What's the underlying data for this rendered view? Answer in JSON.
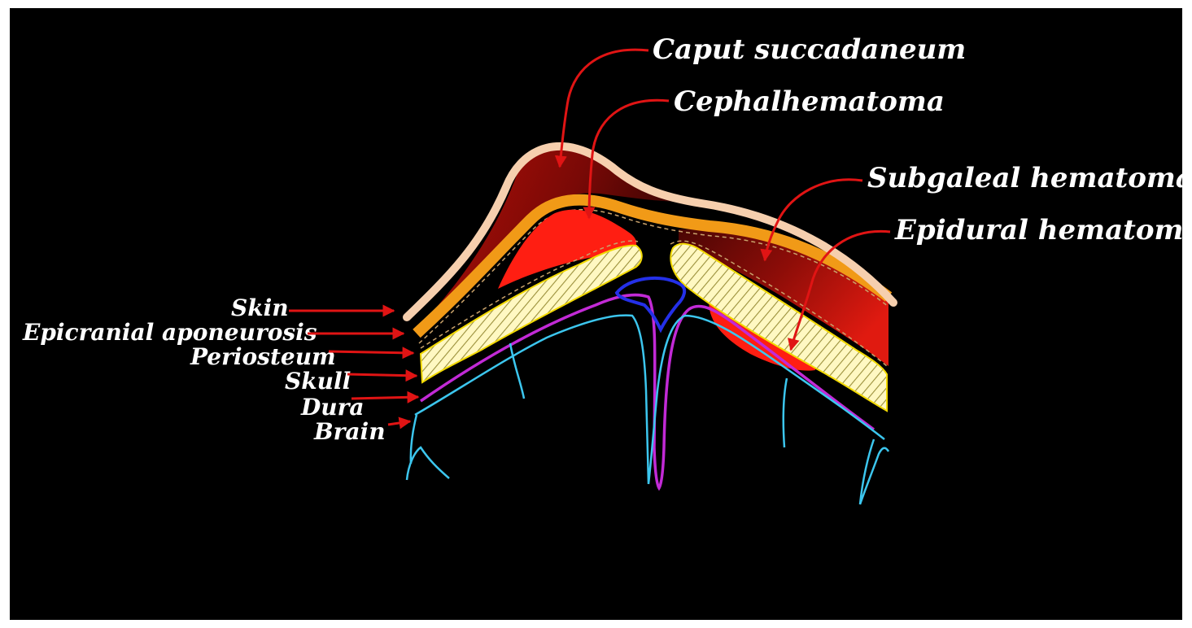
{
  "labels": {
    "caput": "Caput succadaneum",
    "cephal": "Cephalhematoma",
    "subgaleal": "Subgaleal hematoma",
    "epidural": "Epidural hematoma",
    "skin": "Skin",
    "aponeurosis": "Epicranial aponeurosis",
    "periosteum": "Periosteum",
    "skull": "Skull",
    "dura": "Dura",
    "brain": "Brain"
  },
  "colors": {
    "background": "#000000",
    "skin": "#f6cfae",
    "aponeurosis": "#f19a17",
    "skull": "#fff59a",
    "dura": "#c22ad6",
    "brain": "#3cc6ee",
    "sinus": "#2430e8",
    "hematoma_bright": "#ff1e12",
    "hematoma_dark": "#8a0c08",
    "arrow": "#e01414"
  }
}
